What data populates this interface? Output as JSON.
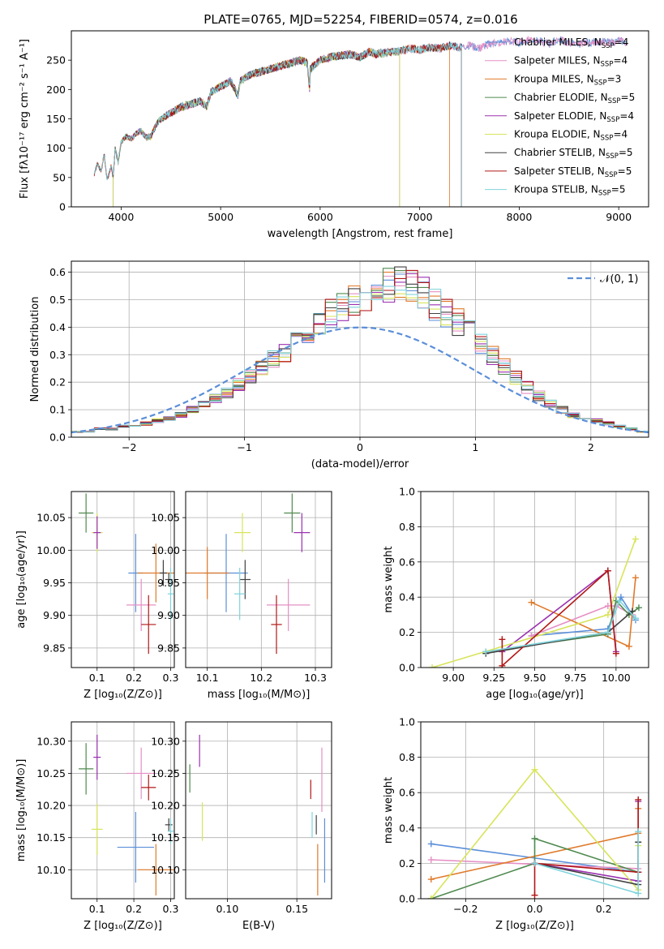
{
  "title": "PLATE=0765, MJD=52254, FIBERID=0574, z=0.016",
  "colors": {
    "chabrier_miles": "#5b8fd9",
    "salpeter_miles": "#e58fc4",
    "kroupa_miles": "#e07a2a",
    "chabrier_elodie": "#4f8a4f",
    "salpeter_elodie": "#9b30b0",
    "kroupa_elodie": "#d8e45a",
    "chabrier_stelib": "#404040",
    "salpeter_stelib": "#b21818",
    "kroupa_stelib": "#7fd3dc",
    "gauss": "#5b8fd9"
  },
  "chart_data": [
    {
      "id": "spectrum",
      "type": "line",
      "xlabel": "wavelength [Angstrom, rest frame]",
      "ylabel": "Flux [fλ10⁻¹⁷ erg cm⁻² s⁻¹ A⁻¹]",
      "xlim": [
        3500,
        9300
      ],
      "ylim": [
        0,
        300
      ],
      "xticks": [
        "4000",
        "5000",
        "6000",
        "7000",
        "8000",
        "9000"
      ],
      "xtick_vals": [
        4000,
        5000,
        6000,
        7000,
        8000,
        9000
      ],
      "yticks": [
        "0",
        "50",
        "100",
        "150",
        "200",
        "250"
      ],
      "ytick_vals": [
        0,
        50,
        100,
        150,
        200,
        250
      ],
      "legend_position": "top-right",
      "legend": [
        {
          "label": "Chabrier MILES, N",
          "sub": "SSP",
          "suffix": "=4",
          "color_key": "chabrier_miles"
        },
        {
          "label": "Salpeter MILES, N",
          "sub": "SSP",
          "suffix": "=4",
          "color_key": "salpeter_miles"
        },
        {
          "label": "Kroupa MILES, N",
          "sub": "SSP",
          "suffix": "=3",
          "color_key": "kroupa_miles"
        },
        {
          "label": "Chabrier ELODIE, N",
          "sub": "SSP",
          "suffix": "=5",
          "color_key": "chabrier_elodie"
        },
        {
          "label": "Salpeter ELODIE, N",
          "sub": "SSP",
          "suffix": "=4",
          "color_key": "salpeter_elodie"
        },
        {
          "label": "Kroupa ELODIE, N",
          "sub": "SSP",
          "suffix": "=4",
          "color_key": "kroupa_elodie"
        },
        {
          "label": "Chabrier STELIB, N",
          "sub": "SSP",
          "suffix": "=5",
          "color_key": "chabrier_stelib"
        },
        {
          "label": "Salpeter STELIB, N",
          "sub": "SSP",
          "suffix": "=5",
          "color_key": "salpeter_stelib"
        },
        {
          "label": "Kroupa STELIB, N",
          "sub": "SSP",
          "suffix": "=5",
          "color_key": "kroupa_stelib"
        }
      ],
      "spectrum_trace": {
        "x": [
          3730,
          3760,
          3800,
          3830,
          3860,
          3900,
          3920,
          3940,
          3970,
          4000,
          4050,
          4100,
          4150,
          4200,
          4250,
          4300,
          4350,
          4400,
          4500,
          4600,
          4700,
          4800,
          4862,
          4900,
          5000,
          5100,
          5175,
          5200,
          5300,
          5400,
          5500,
          5600,
          5700,
          5800,
          5870,
          5895,
          5900,
          6000,
          6100,
          6200,
          6300,
          6400,
          6500,
          6563,
          6600,
          6700,
          6800,
          6900,
          7000,
          7100,
          7200,
          7300,
          7400,
          7500,
          7600,
          7700,
          7800,
          7900,
          8000,
          8100,
          8200,
          8300,
          8400,
          8500,
          8600,
          8700,
          8800,
          8900,
          9000,
          9100
        ],
        "y": [
          55,
          75,
          60,
          90,
          45,
          70,
          50,
          100,
          75,
          110,
          120,
          115,
          125,
          130,
          118,
          120,
          140,
          150,
          160,
          170,
          175,
          180,
          170,
          195,
          205,
          215,
          190,
          215,
          225,
          230,
          235,
          240,
          245,
          250,
          245,
          200,
          235,
          250,
          255,
          258,
          260,
          255,
          265,
          260,
          262,
          263,
          265,
          270,
          268,
          272,
          270,
          275,
          272,
          275,
          270,
          278,
          280,
          282,
          280,
          285,
          282,
          278,
          285,
          280,
          278,
          280,
          282,
          280,
          283,
          280
        ],
        "drop_elodie_x": [
          3920,
          6800
        ],
        "drop_stelib_x": 7420,
        "elodie_end": 6800,
        "stelib_end": 7420,
        "miles_end": 7300
      }
    },
    {
      "id": "residuals",
      "type": "line",
      "xlabel": "(data-model)/error",
      "ylabel": "Normed distribution",
      "xlim": [
        -2.5,
        2.5
      ],
      "ylim": [
        0,
        0.64
      ],
      "xticks": [
        "−2",
        "−1",
        "0",
        "1",
        "2"
      ],
      "xtick_vals": [
        -2,
        -1,
        0,
        1,
        2
      ],
      "yticks": [
        "0.0",
        "0.1",
        "0.2",
        "0.3",
        "0.4",
        "0.5",
        "0.6"
      ],
      "ytick_vals": [
        0,
        0.1,
        0.2,
        0.3,
        0.4,
        0.5,
        0.6
      ],
      "legend": [
        {
          "label": "𝒩(0, 1)",
          "color_key": "gauss"
        }
      ],
      "legend_position": "top-right",
      "bin_width": 0.1,
      "hist_envelope": [
        0.02,
        0.02,
        0.03,
        0.03,
        0.04,
        0.04,
        0.05,
        0.06,
        0.07,
        0.08,
        0.1,
        0.12,
        0.14,
        0.16,
        0.19,
        0.22,
        0.25,
        0.28,
        0.31,
        0.34,
        0.38,
        0.42,
        0.45,
        0.48,
        0.5,
        0.52,
        0.54,
        0.55,
        0.56,
        0.55,
        0.52,
        0.48,
        0.45,
        0.42,
        0.38,
        0.34,
        0.3,
        0.26,
        0.22,
        0.18,
        0.15,
        0.12,
        0.1,
        0.08,
        0.07,
        0.06,
        0.05,
        0.04,
        0.03,
        0.02
      ]
    },
    {
      "id": "age_vs_Z",
      "type": "scatter",
      "xlabel": "Z [log₁₀(Z/Z⊙)]",
      "ylabel": "age  [log₁₀(age/yr)]",
      "xlim": [
        0.03,
        0.31
      ],
      "ylim": [
        9.82,
        10.09
      ],
      "xticks": [
        "0.1",
        "0.2",
        "0.3"
      ],
      "xtick_vals": [
        0.1,
        0.2,
        0.3
      ],
      "yticks": [
        "9.85",
        "9.90",
        "9.95",
        "10.00",
        "10.05"
      ],
      "ytick_vals": [
        9.85,
        9.9,
        9.95,
        10.0,
        10.05
      ],
      "points": [
        {
          "c": "chabrier_elodie",
          "x": 0.07,
          "y": 10.057,
          "dx": 0.02,
          "dy": 0.03
        },
        {
          "c": "kroupa_elodie",
          "x": 0.1,
          "y": 10.027,
          "dx": 0.015,
          "dy": 0.03
        },
        {
          "c": "salpeter_elodie",
          "x": 0.1,
          "y": 10.027,
          "dx": 0.01,
          "dy": 0.025
        },
        {
          "c": "chabrier_miles",
          "x": 0.205,
          "y": 9.965,
          "dx": 0.02,
          "dy": 0.06
        },
        {
          "c": "kroupa_miles",
          "x": 0.26,
          "y": 9.965,
          "dx": 0.05,
          "dy": 0.045
        },
        {
          "c": "chabrier_stelib",
          "x": 0.28,
          "y": 9.965,
          "dx": 0.01,
          "dy": 0.02
        },
        {
          "c": "chabrier_stelib",
          "x": 0.295,
          "y": 9.955,
          "dx": 0.01,
          "dy": 0.01
        },
        {
          "c": "kroupa_stelib",
          "x": 0.3,
          "y": 9.933,
          "dx": 0.008,
          "dy": 0.04
        },
        {
          "c": "salpeter_miles",
          "x": 0.22,
          "y": 9.916,
          "dx": 0.04,
          "dy": 0.04
        },
        {
          "c": "salpeter_stelib",
          "x": 0.24,
          "y": 9.886,
          "dx": 0.02,
          "dy": 0.045
        }
      ]
    },
    {
      "id": "age_vs_mass",
      "type": "scatter",
      "xlabel": "mass [log₁₀(M/M⊙)]",
      "ylabel": "",
      "xlim": [
        10.06,
        10.33
      ],
      "ylim": [
        9.82,
        10.09
      ],
      "xticks": [
        "10.1",
        "10.2",
        "10.3"
      ],
      "xtick_vals": [
        10.1,
        10.2,
        10.3
      ],
      "yticks": [
        "9.85",
        "9.90",
        "9.95",
        "10.00",
        "10.05"
      ],
      "ytick_vals": [
        9.85,
        9.9,
        9.95,
        10.0,
        10.05
      ],
      "points": [
        {
          "c": "chabrier_elodie",
          "x": 10.257,
          "y": 10.057,
          "dx": 0.015,
          "dy": 0.03
        },
        {
          "c": "kroupa_elodie",
          "x": 10.165,
          "y": 10.027,
          "dx": 0.015,
          "dy": 0.03
        },
        {
          "c": "salpeter_elodie",
          "x": 10.275,
          "y": 10.027,
          "dx": 0.015,
          "dy": 0.03
        },
        {
          "c": "chabrier_miles",
          "x": 10.135,
          "y": 9.965,
          "dx": 0.04,
          "dy": 0.06
        },
        {
          "c": "kroupa_miles",
          "x": 10.1,
          "y": 9.965,
          "dx": 0.04,
          "dy": 0.04
        },
        {
          "c": "chabrier_stelib",
          "x": 10.17,
          "y": 9.955,
          "dx": 0.01,
          "dy": 0.03
        },
        {
          "c": "kroupa_stelib",
          "x": 10.16,
          "y": 9.933,
          "dx": 0.01,
          "dy": 0.04
        },
        {
          "c": "salpeter_miles",
          "x": 10.25,
          "y": 9.916,
          "dx": 0.04,
          "dy": 0.04
        },
        {
          "c": "salpeter_stelib",
          "x": 10.228,
          "y": 9.886,
          "dx": 0.01,
          "dy": 0.045
        }
      ]
    },
    {
      "id": "mass_weight_vs_age",
      "type": "line",
      "xlabel": "age  [log₁₀(age/yr)]",
      "ylabel": "mass weight",
      "xlim": [
        8.8,
        10.2
      ],
      "ylim": [
        0,
        1
      ],
      "xticks": [
        "9.00",
        "9.25",
        "9.50",
        "9.75",
        "10.00"
      ],
      "xtick_vals": [
        9.0,
        9.25,
        9.5,
        9.75,
        10.0
      ],
      "yticks": [
        "0.0",
        "0.2",
        "0.4",
        "0.6",
        "0.8",
        "1.0"
      ],
      "ytick_vals": [
        0,
        0.2,
        0.4,
        0.6,
        0.8,
        1.0
      ],
      "series": [
        {
          "c": "chabrier_miles",
          "x": [
            9.48,
            9.95,
            10.03,
            10.12
          ],
          "y": [
            0.18,
            0.22,
            0.4,
            0.27
          ]
        },
        {
          "c": "salpeter_miles",
          "x": [
            9.48,
            9.95,
            10.0,
            10.1
          ],
          "y": [
            0.18,
            0.35,
            0.35,
            0.3
          ]
        },
        {
          "c": "kroupa_miles",
          "x": [
            9.48,
            10.08,
            10.12
          ],
          "y": [
            0.37,
            0.12,
            0.51
          ]
        },
        {
          "c": "chabrier_elodie",
          "x": [
            9.2,
            9.95,
            10.0,
            10.08,
            10.14
          ],
          "y": [
            0.09,
            0.19,
            0.38,
            0.3,
            0.34
          ]
        },
        {
          "c": "salpeter_elodie",
          "x": [
            9.3,
            9.95,
            10.0
          ],
          "y": [
            0.09,
            0.55,
            0.09
          ]
        },
        {
          "c": "kroupa_elodie",
          "x": [
            8.87,
            9.95,
            10.12
          ],
          "y": [
            0.0,
            0.3,
            0.73
          ]
        },
        {
          "c": "chabrier_stelib",
          "x": [
            9.2,
            9.95,
            10.1
          ],
          "y": [
            0.08,
            0.2,
            0.32
          ]
        },
        {
          "c": "salpeter_stelib",
          "x": [
            9.3,
            9.3,
            9.95,
            10.0
          ],
          "y": [
            0.16,
            0.01,
            0.55,
            0.08
          ]
        },
        {
          "c": "kroupa_stelib",
          "x": [
            9.2,
            9.95,
            10.02,
            10.12
          ],
          "y": [
            0.09,
            0.2,
            0.38,
            0.28
          ]
        }
      ]
    },
    {
      "id": "mass_vs_Z",
      "type": "scatter",
      "xlabel": "Z [log₁₀(Z/Z⊙)]",
      "ylabel": "mass [log₁₀(M/M⊙)]",
      "xlim": [
        0.03,
        0.31
      ],
      "ylim": [
        10.055,
        10.33
      ],
      "xticks": [
        "0.1",
        "0.2",
        "0.3"
      ],
      "xtick_vals": [
        0.1,
        0.2,
        0.3
      ],
      "yticks": [
        "10.10",
        "10.15",
        "10.20",
        "10.25",
        "10.30"
      ],
      "ytick_vals": [
        10.1,
        10.15,
        10.2,
        10.25,
        10.3
      ],
      "points": [
        {
          "c": "salpeter_elodie",
          "x": 0.1,
          "y": 10.275,
          "dx": 0.01,
          "dy": 0.035
        },
        {
          "c": "chabrier_elodie",
          "x": 0.07,
          "y": 10.257,
          "dx": 0.02,
          "dy": 0.04
        },
        {
          "c": "salpeter_miles",
          "x": 0.22,
          "y": 10.25,
          "dx": 0.04,
          "dy": 0.04
        },
        {
          "c": "salpeter_stelib",
          "x": 0.24,
          "y": 10.228,
          "dx": 0.02,
          "dy": 0.02
        },
        {
          "c": "kroupa_elodie",
          "x": 0.1,
          "y": 10.163,
          "dx": 0.015,
          "dy": 0.04
        },
        {
          "c": "chabrier_stelib",
          "x": 0.295,
          "y": 10.17,
          "dx": 0.01,
          "dy": 0.01
        },
        {
          "c": "kroupa_stelib",
          "x": 0.3,
          "y": 10.16,
          "dx": 0.008,
          "dy": 0.02
        },
        {
          "c": "chabrier_miles",
          "x": 0.205,
          "y": 10.135,
          "dx": 0.05,
          "dy": 0.055
        },
        {
          "c": "kroupa_miles",
          "x": 0.26,
          "y": 10.1,
          "dx": 0.05,
          "dy": 0.04
        }
      ]
    },
    {
      "id": "mass_vs_EBV",
      "type": "scatter",
      "xlabel": "E(B-V)",
      "ylabel": "",
      "xlim": [
        0.07,
        0.175
      ],
      "ylim": [
        10.055,
        10.33
      ],
      "xticks": [
        "0.10",
        "0.15"
      ],
      "xtick_vals": [
        0.1,
        0.15
      ],
      "yticks": [
        "10.10",
        "10.15",
        "10.20",
        "10.25",
        "10.30"
      ],
      "ytick_vals": [
        10.1,
        10.15,
        10.2,
        10.25,
        10.3
      ],
      "points": [
        {
          "c": "salpeter_elodie",
          "x": 0.08,
          "y": 10.285,
          "dx": 0,
          "dy": 0.025
        },
        {
          "c": "chabrier_elodie",
          "x": 0.073,
          "y": 10.242,
          "dx": 0,
          "dy": 0.022
        },
        {
          "c": "kroupa_elodie",
          "x": 0.082,
          "y": 10.175,
          "dx": 0,
          "dy": 0.03
        },
        {
          "c": "salpeter_miles",
          "x": 0.168,
          "y": 10.24,
          "dx": 0,
          "dy": 0.05
        },
        {
          "c": "salpeter_stelib",
          "x": 0.16,
          "y": 10.225,
          "dx": 0,
          "dy": 0.015
        },
        {
          "c": "kroupa_stelib",
          "x": 0.161,
          "y": 10.17,
          "dx": 0,
          "dy": 0.02
        },
        {
          "c": "chabrier_stelib",
          "x": 0.164,
          "y": 10.17,
          "dx": 0,
          "dy": 0.015
        },
        {
          "c": "chabrier_miles",
          "x": 0.17,
          "y": 10.13,
          "dx": 0,
          "dy": 0.05
        },
        {
          "c": "kroupa_miles",
          "x": 0.165,
          "y": 10.1,
          "dx": 0,
          "dy": 0.04
        }
      ]
    },
    {
      "id": "mass_weight_vs_Z",
      "type": "line",
      "xlabel": "Z [log₁₀(Z/Z⊙)]",
      "ylabel": "mass weight",
      "xlim": [
        -0.33,
        0.33
      ],
      "ylim": [
        0,
        1
      ],
      "xticks": [
        "−0.2",
        "0.0",
        "0.2"
      ],
      "xtick_vals": [
        -0.2,
        0.0,
        0.2
      ],
      "yticks": [
        "0.0",
        "0.2",
        "0.4",
        "0.6",
        "0.8",
        "1.0"
      ],
      "ytick_vals": [
        0,
        0.2,
        0.4,
        0.6,
        0.8,
        1.0
      ],
      "series": [
        {
          "c": "chabrier_miles",
          "x": [
            -0.3,
            0.3
          ],
          "y": [
            0.31,
            0.15
          ]
        },
        {
          "c": "salpeter_miles",
          "x": [
            -0.3,
            0.3
          ],
          "y": [
            0.22,
            0.17
          ]
        },
        {
          "c": "kroupa_miles",
          "x": [
            -0.3,
            0.3,
            0.3
          ],
          "y": [
            0.11,
            0.37,
            0.51
          ]
        },
        {
          "c": "chabrier_elodie",
          "x": [
            -0.3,
            0.0,
            0.0,
            0.3,
            0.3
          ],
          "y": [
            0.0,
            0.2,
            0.34,
            0.15,
            0.1
          ]
        },
        {
          "c": "salpeter_elodie",
          "x": [
            0.0,
            0.3,
            0.3
          ],
          "y": [
            0.2,
            0.1,
            0.55
          ]
        },
        {
          "c": "kroupa_elodie",
          "x": [
            -0.3,
            0.0,
            0.3,
            0.3
          ],
          "y": [
            0.0,
            0.73,
            0.05,
            0.3
          ]
        },
        {
          "c": "chabrier_stelib",
          "x": [
            0.0,
            0.3,
            0.3
          ],
          "y": [
            0.2,
            0.08,
            0.32
          ]
        },
        {
          "c": "salpeter_stelib",
          "x": [
            0.0,
            0.0,
            0.3,
            0.3
          ],
          "y": [
            0.02,
            0.2,
            0.15,
            0.56
          ]
        },
        {
          "c": "kroupa_stelib",
          "x": [
            0.0,
            0.3,
            0.3
          ],
          "y": [
            0.2,
            0.03,
            0.38
          ]
        }
      ]
    }
  ]
}
